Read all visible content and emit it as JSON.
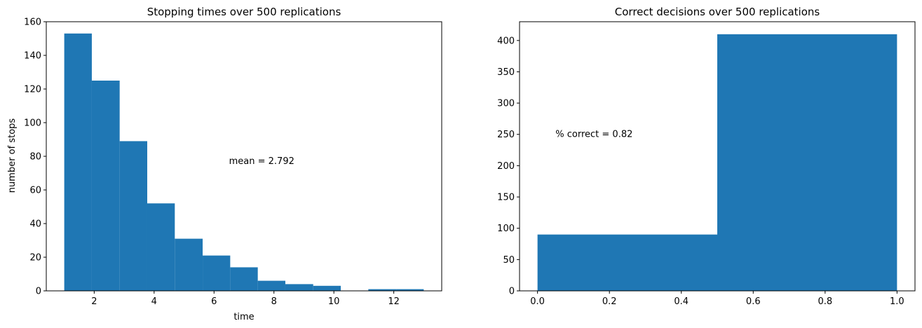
{
  "chart_data": [
    {
      "type": "bar",
      "title": "Stopping times over 500 replications",
      "xlabel": "time",
      "ylabel": "number of stops",
      "xlim": [
        0.4,
        13.6
      ],
      "ylim": [
        0,
        160
      ],
      "xticks": [
        2,
        4,
        6,
        8,
        10,
        12
      ],
      "yticks": [
        0,
        20,
        40,
        60,
        80,
        100,
        120,
        140,
        160
      ],
      "bins": [
        1.0,
        2.0,
        3.0,
        4.0,
        5.0,
        6.0,
        7.0,
        8.0,
        9.0,
        10.0,
        11.0,
        12.0,
        13.0
      ],
      "bars": [
        {
          "x0": 1.0,
          "x1": 1.92,
          "value": 153
        },
        {
          "x0": 1.92,
          "x1": 2.85,
          "value": 125
        },
        {
          "x0": 2.85,
          "x1": 3.77,
          "value": 89
        },
        {
          "x0": 3.77,
          "x1": 4.69,
          "value": 52
        },
        {
          "x0": 4.69,
          "x1": 5.62,
          "value": 31
        },
        {
          "x0": 5.62,
          "x1": 6.54,
          "value": 21
        },
        {
          "x0": 6.54,
          "x1": 7.46,
          "value": 14
        },
        {
          "x0": 7.46,
          "x1": 8.38,
          "value": 6
        },
        {
          "x0": 8.38,
          "x1": 9.31,
          "value": 4
        },
        {
          "x0": 9.31,
          "x1": 10.23,
          "value": 3
        },
        {
          "x0": 10.23,
          "x1": 11.15,
          "value": 0
        },
        {
          "x0": 11.15,
          "x1": 12.08,
          "value": 1
        },
        {
          "x0": 12.08,
          "x1": 13.0,
          "value": 1
        }
      ],
      "annotation": {
        "text": "mean = 2.792",
        "x": 6.5,
        "y": 77
      },
      "color": "#1f77b4",
      "grid": false
    },
    {
      "type": "bar",
      "title": "Correct decisions over 500 replications",
      "xlabel": "",
      "ylabel": "",
      "xlim": [
        -0.05,
        1.05
      ],
      "ylim": [
        0,
        430
      ],
      "xticks": [
        "0.0",
        "0.2",
        "0.4",
        "0.6",
        "0.8",
        "1.0"
      ],
      "yticks": [
        0,
        50,
        100,
        150,
        200,
        250,
        300,
        350,
        400
      ],
      "bars": [
        {
          "x0": 0.0,
          "x1": 0.5,
          "value": 90
        },
        {
          "x0": 0.5,
          "x1": 1.0,
          "value": 410
        }
      ],
      "annotation": {
        "text": "% correct = 0.82",
        "x": 0.05,
        "y": 250
      },
      "color": "#1f77b4",
      "grid": false
    }
  ]
}
